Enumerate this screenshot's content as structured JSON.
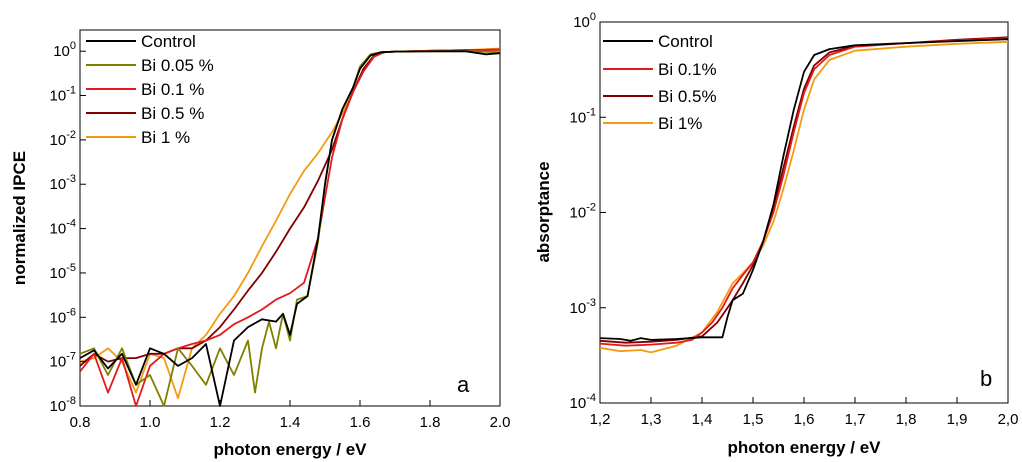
{
  "chart_data": [
    {
      "panel_label": "a",
      "type": "line",
      "xlabel": "photon energy / eV",
      "ylabel": "normalized IPCE",
      "xlim": [
        0.8,
        2.0
      ],
      "ylim": [
        1e-08,
        3
      ],
      "yscale": "log",
      "x_ticks": [
        "0.8",
        "1.0",
        "1.2",
        "1.4",
        "1.6",
        "1.8",
        "2.0"
      ],
      "y_tick_exponents": [
        "0",
        "-1",
        "-2",
        "-3",
        "-4",
        "-5",
        "-6",
        "-7",
        "-8"
      ],
      "legend_position": "top-left",
      "series": [
        {
          "name": "Control",
          "color": "#000000",
          "points": [
            [
              0.8,
              1.2e-07
            ],
            [
              0.84,
              1.8e-07
            ],
            [
              0.88,
              7e-08
            ],
            [
              0.92,
              1.5e-07
            ],
            [
              0.96,
              3e-08
            ],
            [
              1.0,
              2e-07
            ],
            [
              1.04,
              1.5e-07
            ],
            [
              1.08,
              8e-08
            ],
            [
              1.12,
              1.2e-07
            ],
            [
              1.16,
              2.5e-07
            ],
            [
              1.2,
              1e-08
            ],
            [
              1.24,
              3e-07
            ],
            [
              1.28,
              6e-07
            ],
            [
              1.32,
              9e-07
            ],
            [
              1.36,
              8e-07
            ],
            [
              1.38,
              1.2e-06
            ],
            [
              1.4,
              4e-07
            ],
            [
              1.42,
              2e-06
            ],
            [
              1.45,
              3e-06
            ],
            [
              1.48,
              6e-05
            ],
            [
              1.5,
              0.001
            ],
            [
              1.52,
              0.01
            ],
            [
              1.55,
              0.05
            ],
            [
              1.58,
              0.15
            ],
            [
              1.6,
              0.4
            ],
            [
              1.63,
              0.8
            ],
            [
              1.66,
              0.95
            ],
            [
              1.7,
              0.98
            ],
            [
              1.8,
              0.99
            ],
            [
              1.9,
              1.0
            ],
            [
              1.96,
              0.85
            ],
            [
              2.0,
              0.9
            ]
          ]
        },
        {
          "name": "Bi 0.05 %",
          "color": "#808000",
          "points": [
            [
              0.8,
              1.5e-07
            ],
            [
              0.84,
              2e-07
            ],
            [
              0.88,
              5e-08
            ],
            [
              0.92,
              2e-07
            ],
            [
              0.96,
              3e-08
            ],
            [
              1.0,
              5e-08
            ],
            [
              1.04,
              1e-08
            ],
            [
              1.08,
              2e-07
            ],
            [
              1.12,
              8e-08
            ],
            [
              1.16,
              3e-08
            ],
            [
              1.2,
              2e-07
            ],
            [
              1.24,
              5e-08
            ],
            [
              1.28,
              3e-07
            ],
            [
              1.3,
              2e-08
            ],
            [
              1.32,
              2e-07
            ],
            [
              1.34,
              8e-07
            ],
            [
              1.36,
              2e-07
            ],
            [
              1.38,
              1.2e-06
            ],
            [
              1.4,
              3e-07
            ],
            [
              1.42,
              2.5e-06
            ],
            [
              1.45,
              3e-06
            ],
            [
              1.48,
              5e-05
            ],
            [
              1.5,
              0.001
            ],
            [
              1.52,
              0.01
            ],
            [
              1.55,
              0.05
            ],
            [
              1.58,
              0.15
            ],
            [
              1.6,
              0.45
            ],
            [
              1.63,
              0.85
            ],
            [
              1.66,
              0.95
            ],
            [
              1.7,
              0.98
            ],
            [
              1.8,
              1.0
            ],
            [
              1.9,
              1.0
            ],
            [
              2.0,
              0.95
            ]
          ]
        },
        {
          "name": "Bi 0.1 %",
          "color": "#e31a1c",
          "points": [
            [
              0.8,
              6e-08
            ],
            [
              0.84,
              1.5e-07
            ],
            [
              0.88,
              2e-08
            ],
            [
              0.92,
              1.2e-07
            ],
            [
              0.96,
              1e-08
            ],
            [
              1.0,
              8e-08
            ],
            [
              1.04,
              1.5e-07
            ],
            [
              1.08,
              2e-07
            ],
            [
              1.12,
              2.5e-07
            ],
            [
              1.16,
              3e-07
            ],
            [
              1.2,
              4e-07
            ],
            [
              1.24,
              7e-07
            ],
            [
              1.28,
              1e-06
            ],
            [
              1.32,
              1.5e-06
            ],
            [
              1.36,
              2.5e-06
            ],
            [
              1.4,
              3.5e-06
            ],
            [
              1.44,
              6e-06
            ],
            [
              1.48,
              6e-05
            ],
            [
              1.5,
              0.0005
            ],
            [
              1.52,
              0.004
            ],
            [
              1.55,
              0.03
            ],
            [
              1.58,
              0.12
            ],
            [
              1.61,
              0.35
            ],
            [
              1.64,
              0.75
            ],
            [
              1.67,
              0.95
            ],
            [
              1.7,
              0.98
            ],
            [
              1.8,
              1.02
            ],
            [
              1.9,
              1.05
            ],
            [
              2.0,
              1.08
            ]
          ]
        },
        {
          "name": "Bi 0.5 %",
          "color": "#800000",
          "points": [
            [
              0.8,
              8e-08
            ],
            [
              0.84,
              1.5e-07
            ],
            [
              0.88,
              1e-07
            ],
            [
              0.92,
              1.2e-07
            ],
            [
              0.96,
              1.2e-07
            ],
            [
              1.0,
              1.5e-07
            ],
            [
              1.04,
              1.5e-07
            ],
            [
              1.08,
              2e-07
            ],
            [
              1.12,
              2e-07
            ],
            [
              1.16,
              3e-07
            ],
            [
              1.2,
              6e-07
            ],
            [
              1.24,
              1.5e-06
            ],
            [
              1.28,
              4e-06
            ],
            [
              1.32,
              1e-05
            ],
            [
              1.36,
              3e-05
            ],
            [
              1.4,
              0.0001
            ],
            [
              1.44,
              0.0003
            ],
            [
              1.48,
              0.0012
            ],
            [
              1.52,
              0.006
            ],
            [
              1.55,
              0.03
            ],
            [
              1.58,
              0.12
            ],
            [
              1.61,
              0.4
            ],
            [
              1.64,
              0.8
            ],
            [
              1.67,
              0.95
            ],
            [
              1.7,
              0.98
            ],
            [
              1.8,
              1.02
            ],
            [
              1.9,
              1.05
            ],
            [
              2.0,
              1.08
            ]
          ]
        },
        {
          "name": "Bi 1 %",
          "color": "#f39c12",
          "points": [
            [
              0.8,
              1e-07
            ],
            [
              0.84,
              1.2e-07
            ],
            [
              0.88,
              2e-07
            ],
            [
              0.92,
              1e-07
            ],
            [
              0.96,
              2e-08
            ],
            [
              1.0,
              1.5e-07
            ],
            [
              1.04,
              1.2e-07
            ],
            [
              1.08,
              1.5e-08
            ],
            [
              1.12,
              2e-07
            ],
            [
              1.16,
              4e-07
            ],
            [
              1.2,
              1.2e-06
            ],
            [
              1.24,
              3e-06
            ],
            [
              1.28,
              1e-05
            ],
            [
              1.32,
              4e-05
            ],
            [
              1.36,
              0.00015
            ],
            [
              1.4,
              0.0006
            ],
            [
              1.44,
              0.002
            ],
            [
              1.48,
              0.005
            ],
            [
              1.52,
              0.015
            ],
            [
              1.55,
              0.04
            ],
            [
              1.58,
              0.12
            ],
            [
              1.61,
              0.4
            ],
            [
              1.64,
              0.8
            ],
            [
              1.67,
              0.95
            ],
            [
              1.7,
              0.98
            ],
            [
              1.8,
              1.02
            ],
            [
              1.9,
              1.05
            ],
            [
              2.0,
              1.15
            ]
          ]
        }
      ]
    },
    {
      "panel_label": "b",
      "type": "line",
      "xlabel": "photon energy / eV",
      "ylabel": "absorptance",
      "xlim": [
        1.2,
        2.0
      ],
      "ylim": [
        0.0001,
        1
      ],
      "yscale": "log",
      "x_ticks": [
        "1,2",
        "1,3",
        "1,4",
        "1,5",
        "1,6",
        "1,7",
        "1,8",
        "1,9",
        "2,0"
      ],
      "y_tick_exponents": [
        "0",
        "-1",
        "-2",
        "-3",
        "-4"
      ],
      "legend_position": "top-left",
      "series": [
        {
          "name": "Control",
          "color": "#000000",
          "points": [
            [
              1.2,
              0.00048
            ],
            [
              1.24,
              0.00047
            ],
            [
              1.26,
              0.00045
            ],
            [
              1.28,
              0.00048
            ],
            [
              1.3,
              0.00046
            ],
            [
              1.35,
              0.00047
            ],
            [
              1.4,
              0.00049
            ],
            [
              1.44,
              0.00049
            ],
            [
              1.45,
              0.0008
            ],
            [
              1.46,
              0.0012
            ],
            [
              1.48,
              0.0014
            ],
            [
              1.5,
              0.0025
            ],
            [
              1.52,
              0.005
            ],
            [
              1.54,
              0.012
            ],
            [
              1.56,
              0.04
            ],
            [
              1.58,
              0.12
            ],
            [
              1.6,
              0.3
            ],
            [
              1.62,
              0.45
            ],
            [
              1.65,
              0.52
            ],
            [
              1.7,
              0.57
            ],
            [
              1.8,
              0.6
            ],
            [
              1.9,
              0.63
            ],
            [
              2.0,
              0.66
            ]
          ]
        },
        {
          "name": "Bi 0.1%",
          "color": "#e31a1c",
          "points": [
            [
              1.2,
              0.00042
            ],
            [
              1.25,
              0.0004
            ],
            [
              1.3,
              0.00041
            ],
            [
              1.35,
              0.00043
            ],
            [
              1.38,
              0.00046
            ],
            [
              1.4,
              0.00055
            ],
            [
              1.42,
              0.0007
            ],
            [
              1.44,
              0.001
            ],
            [
              1.46,
              0.0016
            ],
            [
              1.48,
              0.0022
            ],
            [
              1.5,
              0.003
            ],
            [
              1.52,
              0.005
            ],
            [
              1.54,
              0.01
            ],
            [
              1.56,
              0.025
            ],
            [
              1.58,
              0.07
            ],
            [
              1.6,
              0.18
            ],
            [
              1.62,
              0.32
            ],
            [
              1.65,
              0.45
            ],
            [
              1.7,
              0.55
            ],
            [
              1.8,
              0.6
            ],
            [
              1.9,
              0.64
            ],
            [
              2.0,
              0.68
            ]
          ]
        },
        {
          "name": "Bi 0.5%",
          "color": "#800000",
          "points": [
            [
              1.2,
              0.00045
            ],
            [
              1.25,
              0.00043
            ],
            [
              1.3,
              0.00044
            ],
            [
              1.35,
              0.00046
            ],
            [
              1.4,
              0.0005
            ],
            [
              1.43,
              0.0007
            ],
            [
              1.45,
              0.001
            ],
            [
              1.46,
              0.0012
            ],
            [
              1.48,
              0.0018
            ],
            [
              1.5,
              0.0028
            ],
            [
              1.52,
              0.005
            ],
            [
              1.54,
              0.011
            ],
            [
              1.56,
              0.03
            ],
            [
              1.58,
              0.08
            ],
            [
              1.6,
              0.2
            ],
            [
              1.62,
              0.35
            ],
            [
              1.65,
              0.48
            ],
            [
              1.7,
              0.56
            ],
            [
              1.8,
              0.6
            ],
            [
              1.9,
              0.65
            ],
            [
              2.0,
              0.69
            ]
          ]
        },
        {
          "name": "Bi 1%",
          "color": "#f39c12",
          "points": [
            [
              1.2,
              0.00038
            ],
            [
              1.24,
              0.00035
            ],
            [
              1.28,
              0.00036
            ],
            [
              1.3,
              0.00034
            ],
            [
              1.35,
              0.0004
            ],
            [
              1.4,
              0.00055
            ],
            [
              1.43,
              0.0009
            ],
            [
              1.46,
              0.0018
            ],
            [
              1.48,
              0.0023
            ],
            [
              1.5,
              0.003
            ],
            [
              1.52,
              0.0045
            ],
            [
              1.54,
              0.008
            ],
            [
              1.56,
              0.018
            ],
            [
              1.58,
              0.045
            ],
            [
              1.6,
              0.12
            ],
            [
              1.62,
              0.25
            ],
            [
              1.65,
              0.4
            ],
            [
              1.7,
              0.5
            ],
            [
              1.8,
              0.55
            ],
            [
              1.9,
              0.59
            ],
            [
              2.0,
              0.62
            ]
          ]
        }
      ]
    }
  ]
}
